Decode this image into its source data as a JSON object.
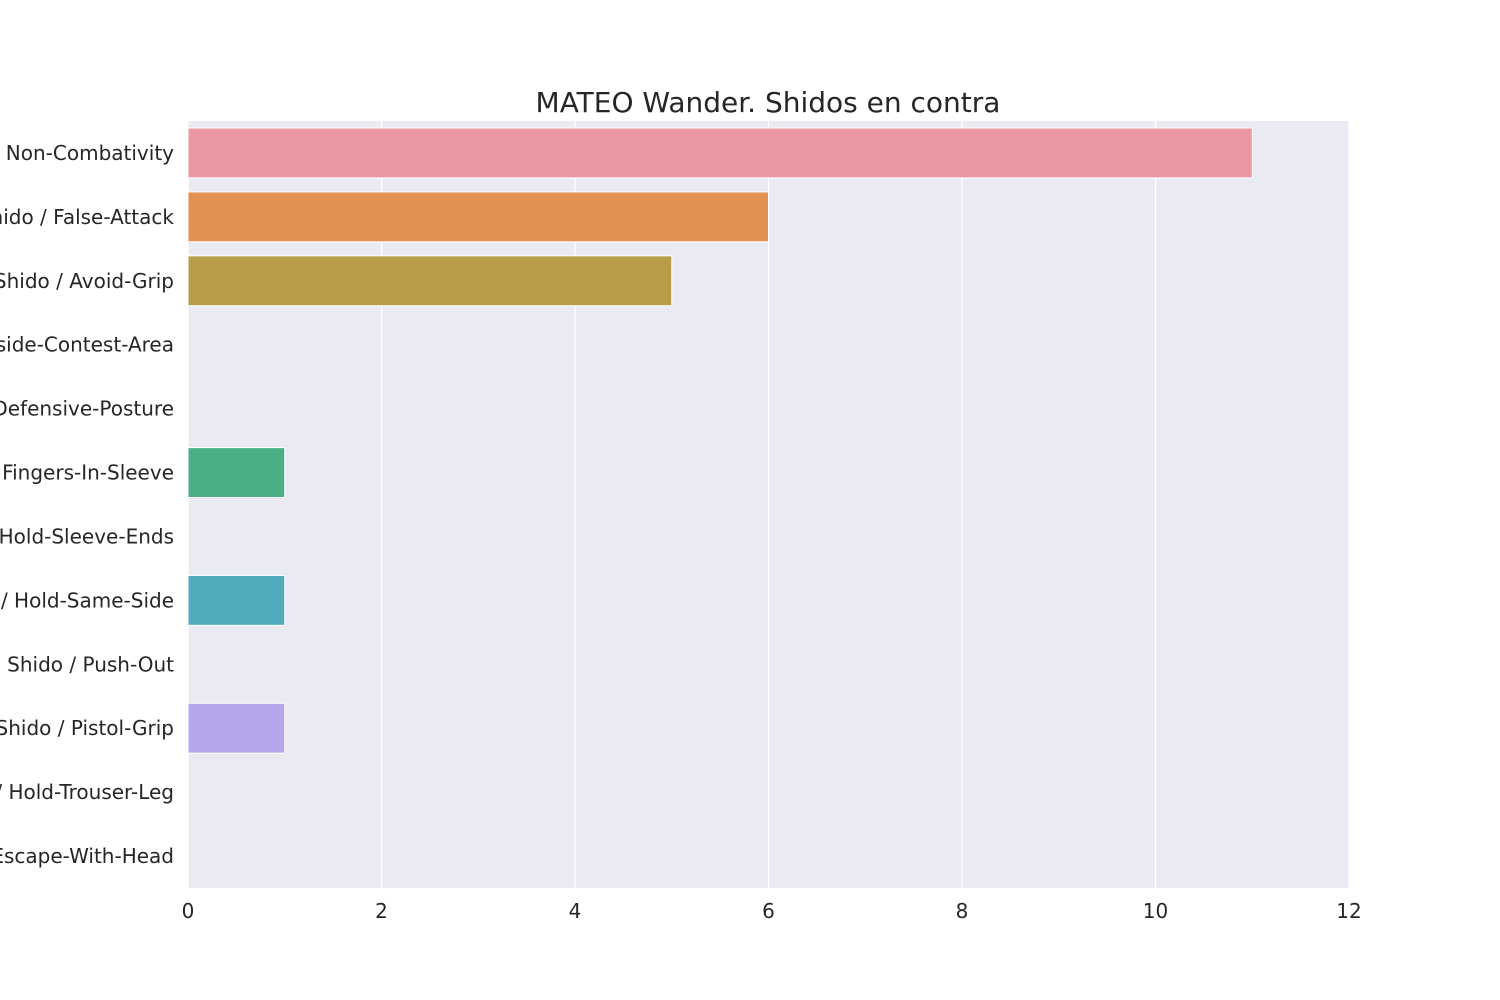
{
  "chart_data": {
    "type": "bar",
    "orientation": "horizontal",
    "title": "MATEO Wander. Shidos en contra",
    "xlabel": "",
    "ylabel": "",
    "categories": [
      "Shido / Non-Combativity",
      "Shido / False-Attack",
      "Shido / Avoid-Grip",
      "Shido / Outside-Contest-Area",
      "Shido / Defensive-Posture",
      "Shido / Fingers-In-Sleeve",
      "Shido / Hold-Sleeve-Ends",
      "Shido / Hold-Same-Side",
      "Shido / Push-Out",
      "Shido / Pistol-Grip",
      "Shido / Hold-Trouser-Leg",
      "Shido / Escape-With-Head"
    ],
    "values": [
      11,
      6,
      5,
      0,
      0,
      1,
      0,
      1,
      0,
      1,
      0,
      0
    ],
    "colors": [
      "#ea96a3",
      "#e19153",
      "#b89c49",
      "#99a44a",
      "#6fac4c",
      "#4aaf85",
      "#4cab9e",
      "#50acbd",
      "#5ea9e3",
      "#b5a6ec",
      "#e38fdd",
      "#e890c3"
    ],
    "xlim": [
      0,
      12
    ],
    "xticks": [
      0,
      2,
      4,
      6,
      8,
      10,
      12
    ],
    "grid": true,
    "legend": false,
    "background": "#eaeaf2"
  }
}
